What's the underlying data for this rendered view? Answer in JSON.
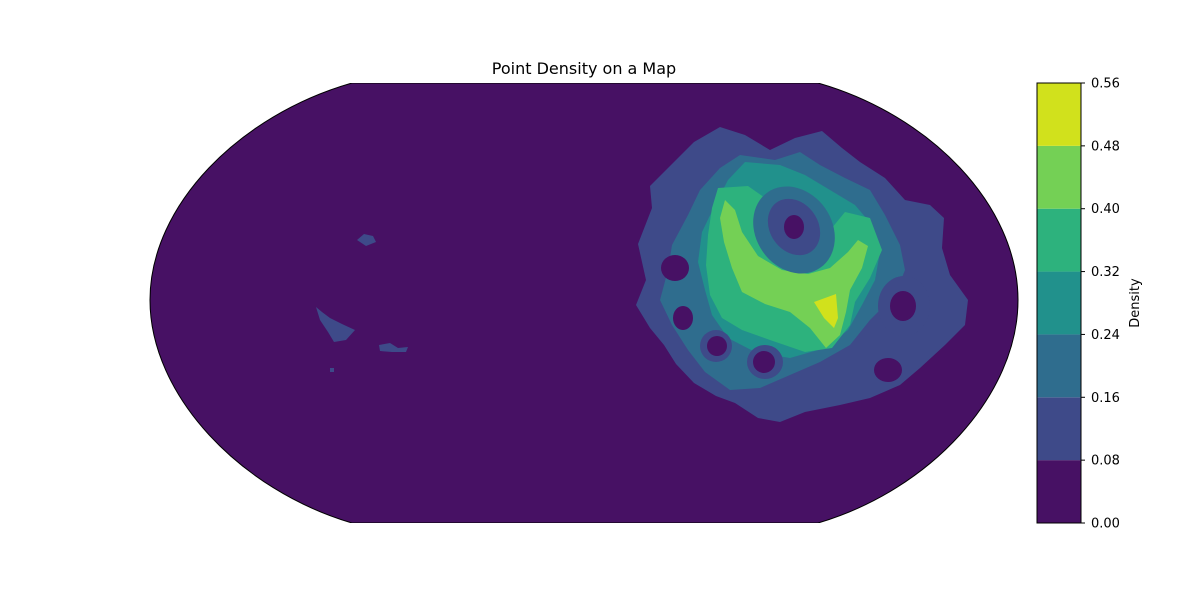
{
  "chart_data": {
    "type": "heatmap",
    "title": "Point Density on a Map",
    "projection": "Robinson (global, clipped at top and bottom)",
    "grid": false,
    "legend_position": "right",
    "colorbar": {
      "label": "Density",
      "levels": [
        0.0,
        0.08,
        0.16,
        0.24,
        0.32,
        0.4,
        0.48,
        0.56
      ],
      "tick_labels": [
        "0.00",
        "0.08",
        "0.16",
        "0.24",
        "0.32",
        "0.40",
        "0.48",
        "0.56"
      ],
      "colors": [
        "#471164",
        "#3e4a89",
        "#2f6d8e",
        "#21918c",
        "#2db27d",
        "#74d055",
        "#d1e11c"
      ]
    },
    "hotspot": {
      "location": "eastern hemisphere, right of center",
      "peak_density_range": [
        0.48,
        0.56
      ]
    }
  }
}
